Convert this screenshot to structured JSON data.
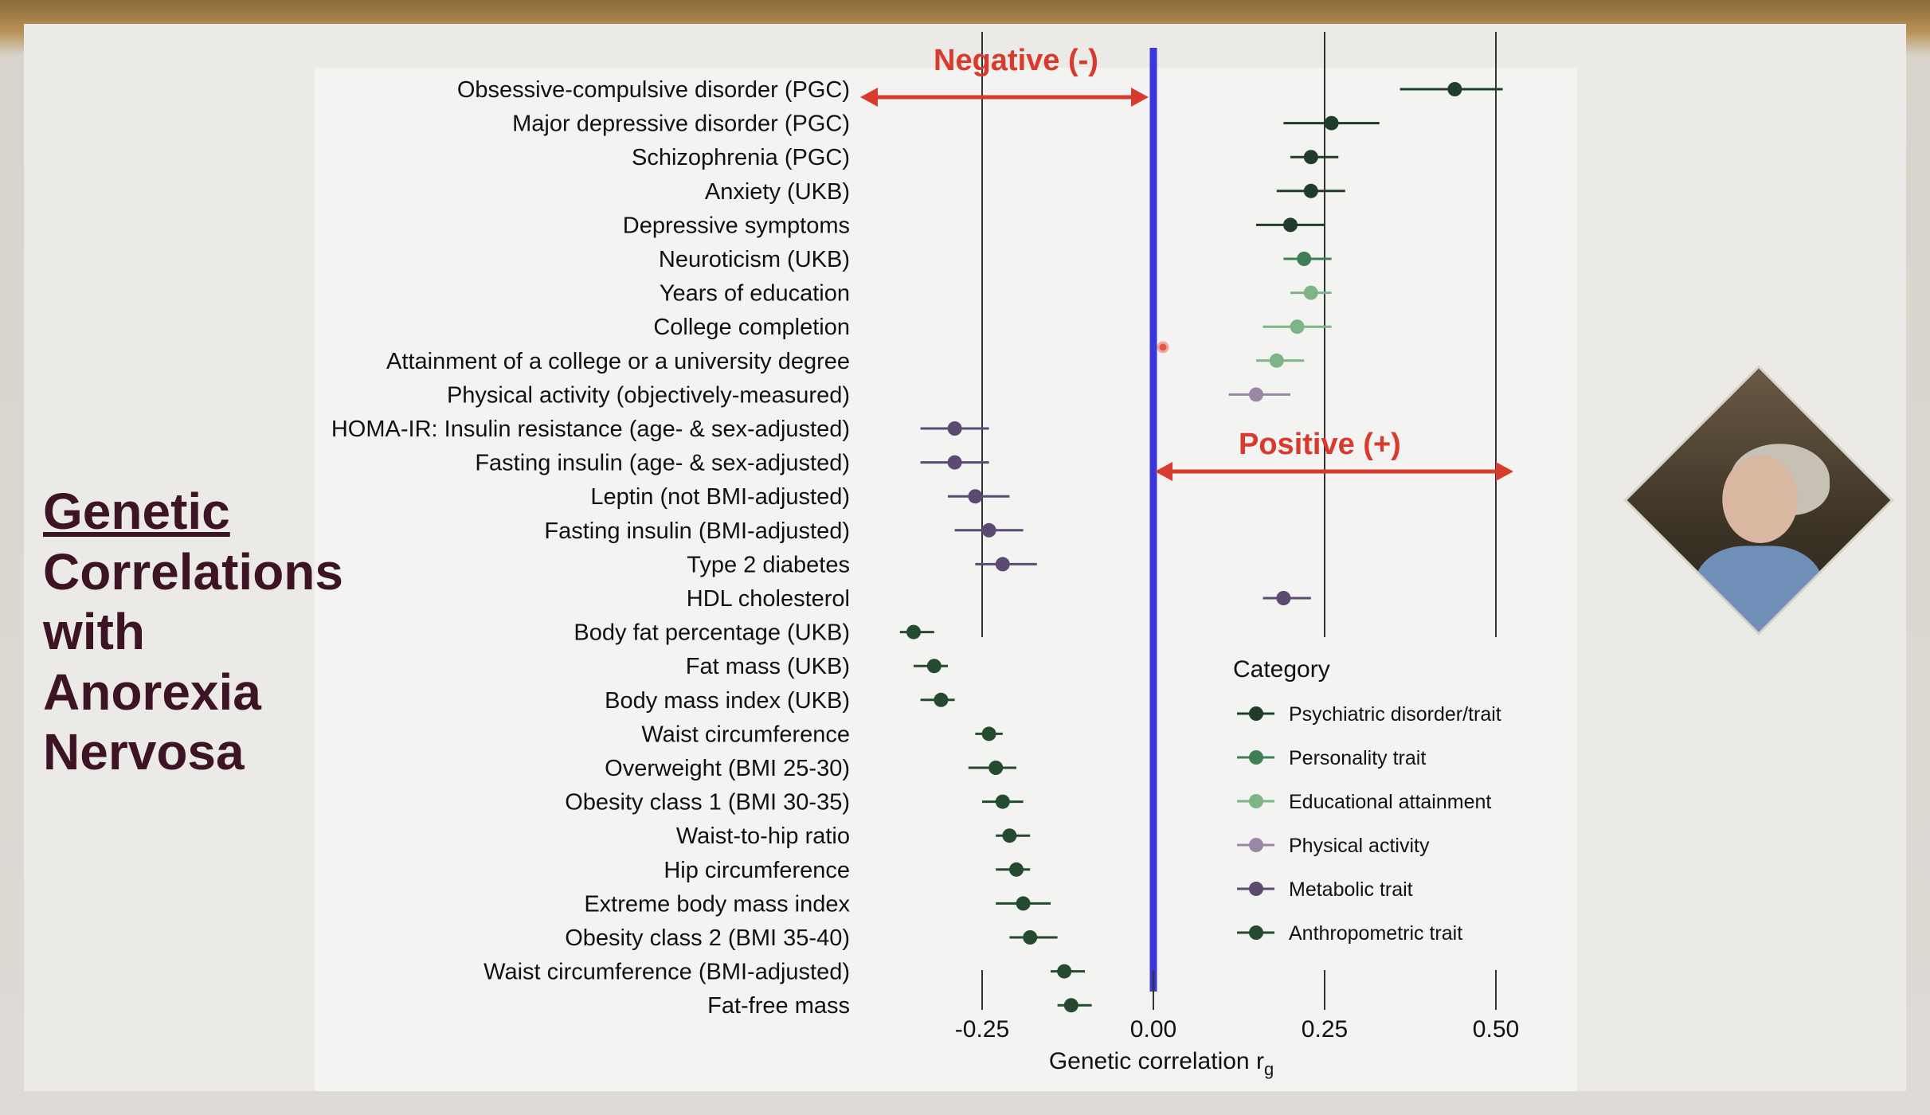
{
  "side_title": [
    "Genetic",
    "Correlations",
    "with",
    "Anorexia",
    "Nervosa"
  ],
  "annotations": {
    "negative": "Negative (-)",
    "positive": "Positive  (+)"
  },
  "legend_title": "Category",
  "colors": {
    "psychiatric": "#1f3d2a",
    "personality": "#3f7f55",
    "education": "#7fb487",
    "physical": "#9a86a6",
    "metabolic": "#5b4a72",
    "anthropometric": "#244a30",
    "zero_line": "#3a36d8",
    "arrow": "#d93a2e",
    "title": "#3d1424"
  },
  "chart_data": {
    "type": "scatter",
    "title": "",
    "xlabel": "Genetic correlation r",
    "xlabel_sub": "g",
    "ylabel": "",
    "xlim": [
      -0.33,
      0.55
    ],
    "xticks": [
      -0.25,
      0.0,
      0.25,
      0.5
    ],
    "xtick_labels": [
      "-0.25",
      "0.00",
      "0.25",
      "0.50"
    ],
    "categories": [
      {
        "key": "psychiatric",
        "name": "Psychiatric disorder/trait"
      },
      {
        "key": "personality",
        "name": "Personality trait"
      },
      {
        "key": "education",
        "name": "Educational attainment"
      },
      {
        "key": "physical",
        "name": "Physical activity"
      },
      {
        "key": "metabolic",
        "name": "Metabolic trait"
      },
      {
        "key": "anthropometric",
        "name": "Anthropometric trait"
      }
    ],
    "points": [
      {
        "label": "Obsessive-compulsive disorder (PGC)",
        "rg": 0.44,
        "lo": 0.36,
        "hi": 0.51,
        "cat": "psychiatric"
      },
      {
        "label": "Major depressive disorder (PGC)",
        "rg": 0.26,
        "lo": 0.19,
        "hi": 0.33,
        "cat": "psychiatric"
      },
      {
        "label": "Schizophrenia (PGC)",
        "rg": 0.23,
        "lo": 0.2,
        "hi": 0.27,
        "cat": "psychiatric"
      },
      {
        "label": "Anxiety (UKB)",
        "rg": 0.23,
        "lo": 0.18,
        "hi": 0.28,
        "cat": "psychiatric"
      },
      {
        "label": "Depressive symptoms",
        "rg": 0.2,
        "lo": 0.15,
        "hi": 0.25,
        "cat": "psychiatric"
      },
      {
        "label": "Neuroticism (UKB)",
        "rg": 0.22,
        "lo": 0.19,
        "hi": 0.26,
        "cat": "personality"
      },
      {
        "label": "Years of education",
        "rg": 0.23,
        "lo": 0.2,
        "hi": 0.26,
        "cat": "education"
      },
      {
        "label": "College completion",
        "rg": 0.21,
        "lo": 0.16,
        "hi": 0.26,
        "cat": "education"
      },
      {
        "label": "Attainment of a college or a university degree",
        "rg": 0.18,
        "lo": 0.15,
        "hi": 0.22,
        "cat": "education"
      },
      {
        "label": "Physical activity (objectively-measured)",
        "rg": 0.15,
        "lo": 0.11,
        "hi": 0.2,
        "cat": "physical"
      },
      {
        "label": "HOMA-IR: Insulin resistance (age- & sex-adjusted)",
        "rg": -0.29,
        "lo": -0.34,
        "hi": -0.24,
        "cat": "metabolic"
      },
      {
        "label": "Fasting insulin (age- & sex-adjusted)",
        "rg": -0.29,
        "lo": -0.34,
        "hi": -0.24,
        "cat": "metabolic"
      },
      {
        "label": "Leptin (not BMI-adjusted)",
        "rg": -0.26,
        "lo": -0.3,
        "hi": -0.21,
        "cat": "metabolic"
      },
      {
        "label": "Fasting insulin (BMI-adjusted)",
        "rg": -0.24,
        "lo": -0.29,
        "hi": -0.19,
        "cat": "metabolic"
      },
      {
        "label": "Type 2 diabetes",
        "rg": -0.22,
        "lo": -0.26,
        "hi": -0.17,
        "cat": "metabolic"
      },
      {
        "label": "HDL cholesterol",
        "rg": 0.19,
        "lo": 0.16,
        "hi": 0.23,
        "cat": "metabolic"
      },
      {
        "label": "Body fat percentage (UKB)",
        "rg": -0.35,
        "lo": -0.37,
        "hi": -0.32,
        "cat": "anthropometric"
      },
      {
        "label": "Fat mass (UKB)",
        "rg": -0.32,
        "lo": -0.35,
        "hi": -0.3,
        "cat": "anthropometric"
      },
      {
        "label": "Body mass index (UKB)",
        "rg": -0.31,
        "lo": -0.34,
        "hi": -0.29,
        "cat": "anthropometric"
      },
      {
        "label": "Waist circumference",
        "rg": -0.24,
        "lo": -0.26,
        "hi": -0.22,
        "cat": "anthropometric"
      },
      {
        "label": "Overweight (BMI 25-30)",
        "rg": -0.23,
        "lo": -0.27,
        "hi": -0.2,
        "cat": "anthropometric"
      },
      {
        "label": "Obesity class 1 (BMI 30-35)",
        "rg": -0.22,
        "lo": -0.25,
        "hi": -0.19,
        "cat": "anthropometric"
      },
      {
        "label": "Waist-to-hip ratio",
        "rg": -0.21,
        "lo": -0.23,
        "hi": -0.18,
        "cat": "anthropometric"
      },
      {
        "label": "Hip circumference",
        "rg": -0.2,
        "lo": -0.23,
        "hi": -0.18,
        "cat": "anthropometric"
      },
      {
        "label": "Extreme body mass index",
        "rg": -0.19,
        "lo": -0.23,
        "hi": -0.15,
        "cat": "anthropometric"
      },
      {
        "label": "Obesity class 2 (BMI 35-40)",
        "rg": -0.18,
        "lo": -0.21,
        "hi": -0.14,
        "cat": "anthropometric"
      },
      {
        "label": "Waist circumference (BMI-adjusted)",
        "rg": -0.13,
        "lo": -0.15,
        "hi": -0.1,
        "cat": "anthropometric"
      },
      {
        "label": "Fat-free mass",
        "rg": -0.12,
        "lo": -0.14,
        "hi": -0.09,
        "cat": "anthropometric"
      }
    ]
  }
}
